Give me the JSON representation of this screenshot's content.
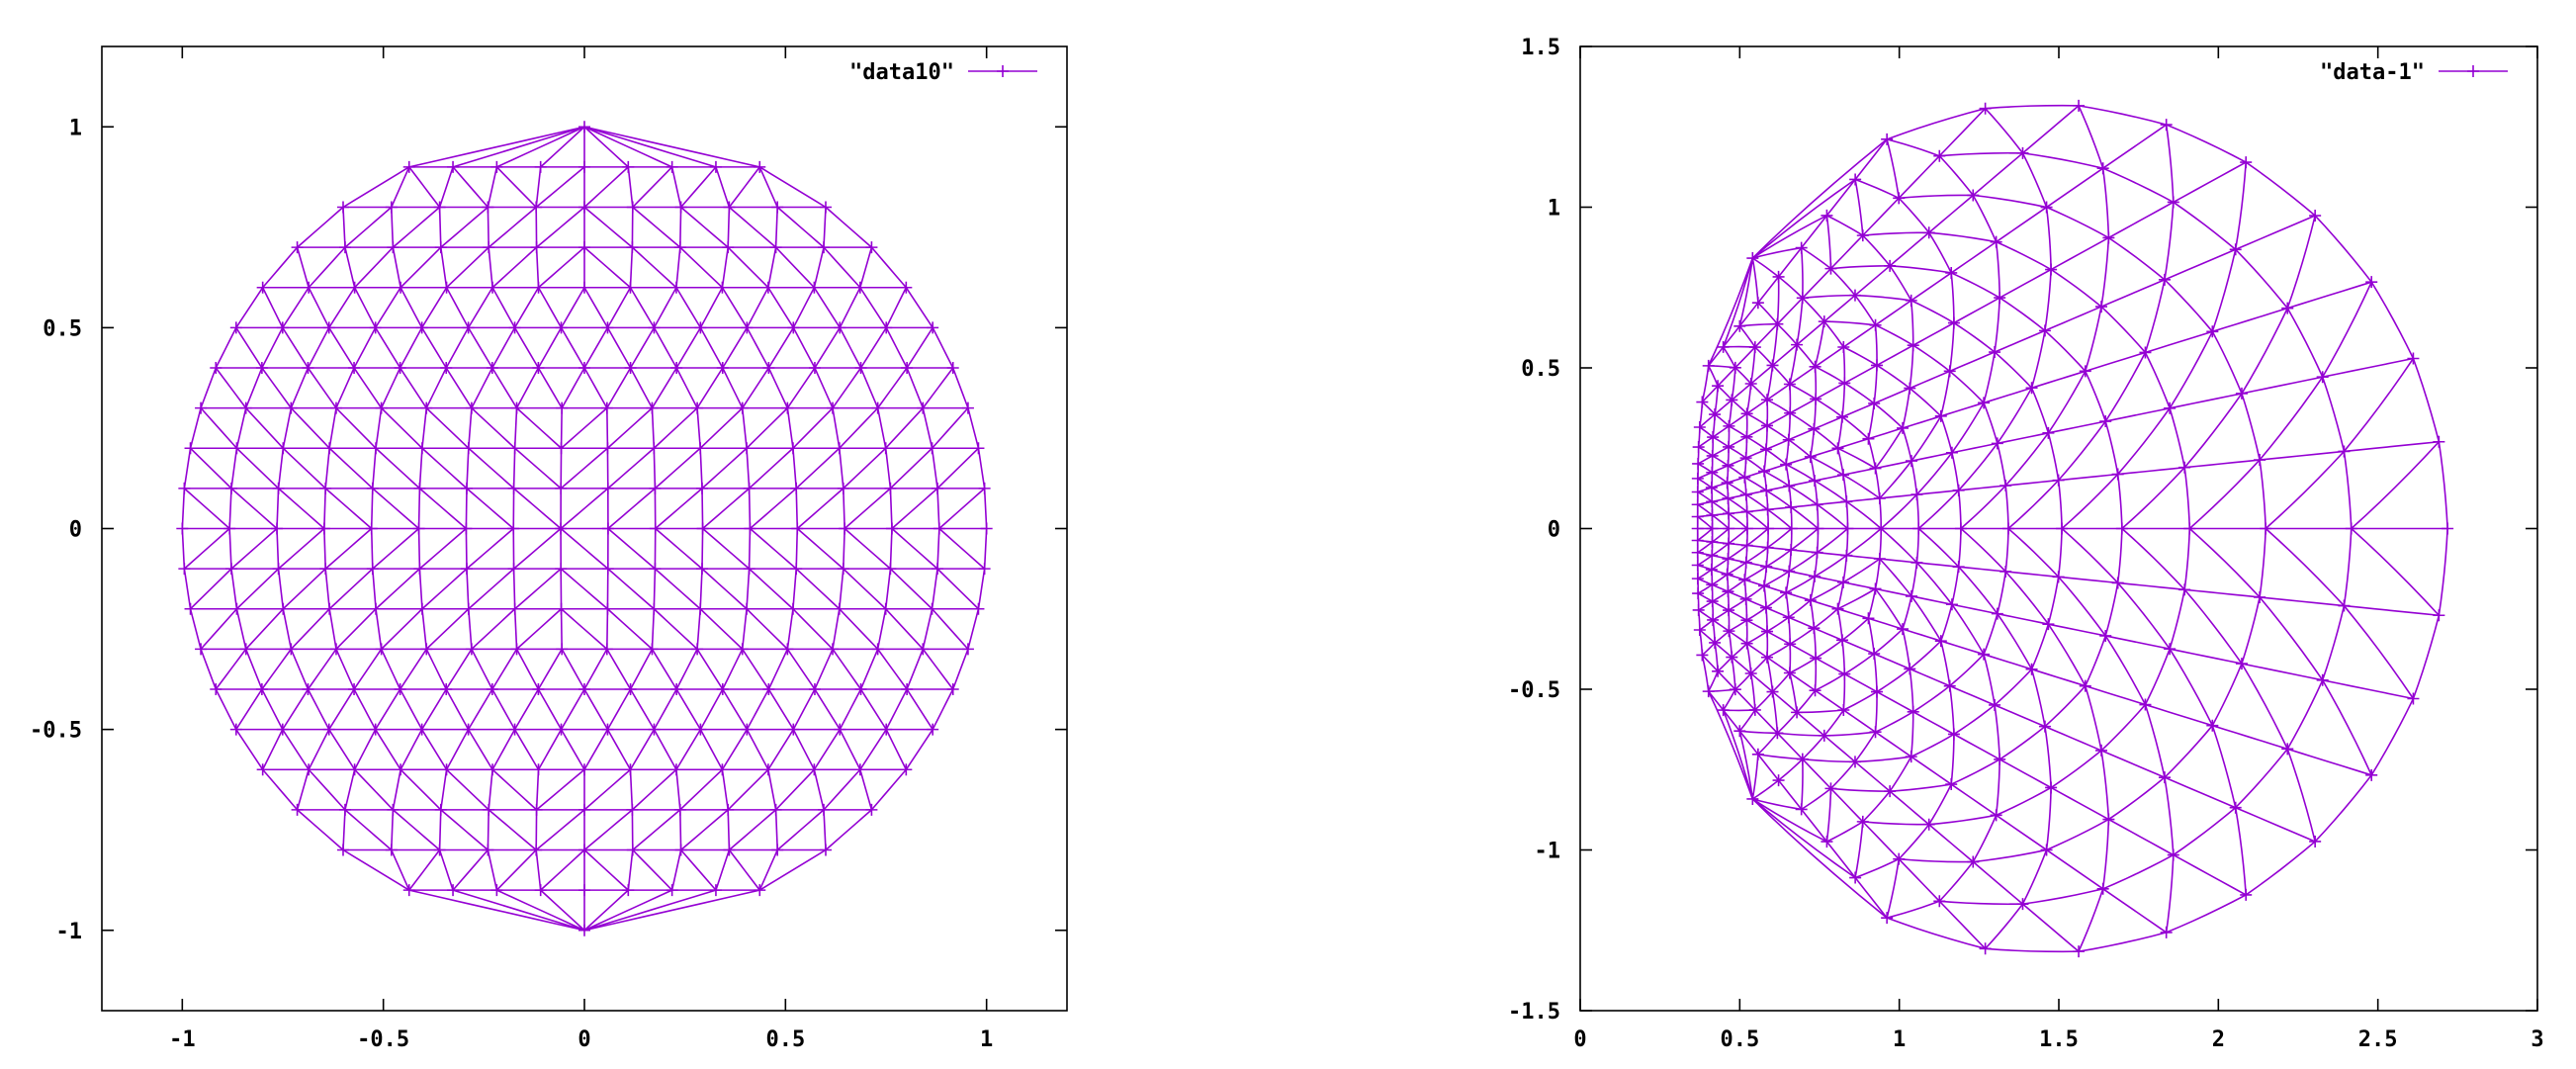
{
  "chart_data": [
    {
      "type": "line",
      "legend": "\"data10\"",
      "legend_position": "top-right",
      "color": "#9400d3",
      "xlim": [
        -1.2,
        1.2
      ],
      "ylim": [
        -1.2,
        1.2
      ],
      "xticks": [
        -1,
        -0.5,
        0,
        0.5,
        1
      ],
      "yticks": [
        -1,
        -0.5,
        0,
        0.5,
        1
      ],
      "xtick_labels": [
        "-1",
        "-0.5",
        "0",
        "0.5",
        "1"
      ],
      "ytick_labels": [
        "-1",
        "-0.5",
        "0",
        "0.5",
        "1"
      ],
      "mesh": "triangular mesh of the unit disk",
      "rows": 21,
      "row_spacing": 0.1,
      "grid": false
    },
    {
      "type": "line",
      "legend": "\"data-1\"",
      "legend_position": "top-right",
      "color": "#9400d3",
      "xlim": [
        0,
        3
      ],
      "ylim": [
        -1.5,
        1.5
      ],
      "xticks": [
        0,
        0.5,
        1,
        1.5,
        2,
        2.5,
        3
      ],
      "yticks": [
        -1.5,
        -1,
        -0.5,
        0,
        0.5,
        1,
        1.5
      ],
      "xtick_labels": [
        "0",
        "0.5",
        "1",
        "1.5",
        "2",
        "2.5",
        "3"
      ],
      "ytick_labels": [
        "-1.5",
        "-1",
        "-0.5",
        "0",
        "0.5",
        "1",
        "1.5"
      ],
      "mesh": "unit-disk mesh mapped by w = exp(z)",
      "x_range_of_mesh": [
        0.368,
        2.718
      ],
      "y_range_of_mesh": [
        -1.32,
        1.32
      ],
      "grid": false
    }
  ]
}
